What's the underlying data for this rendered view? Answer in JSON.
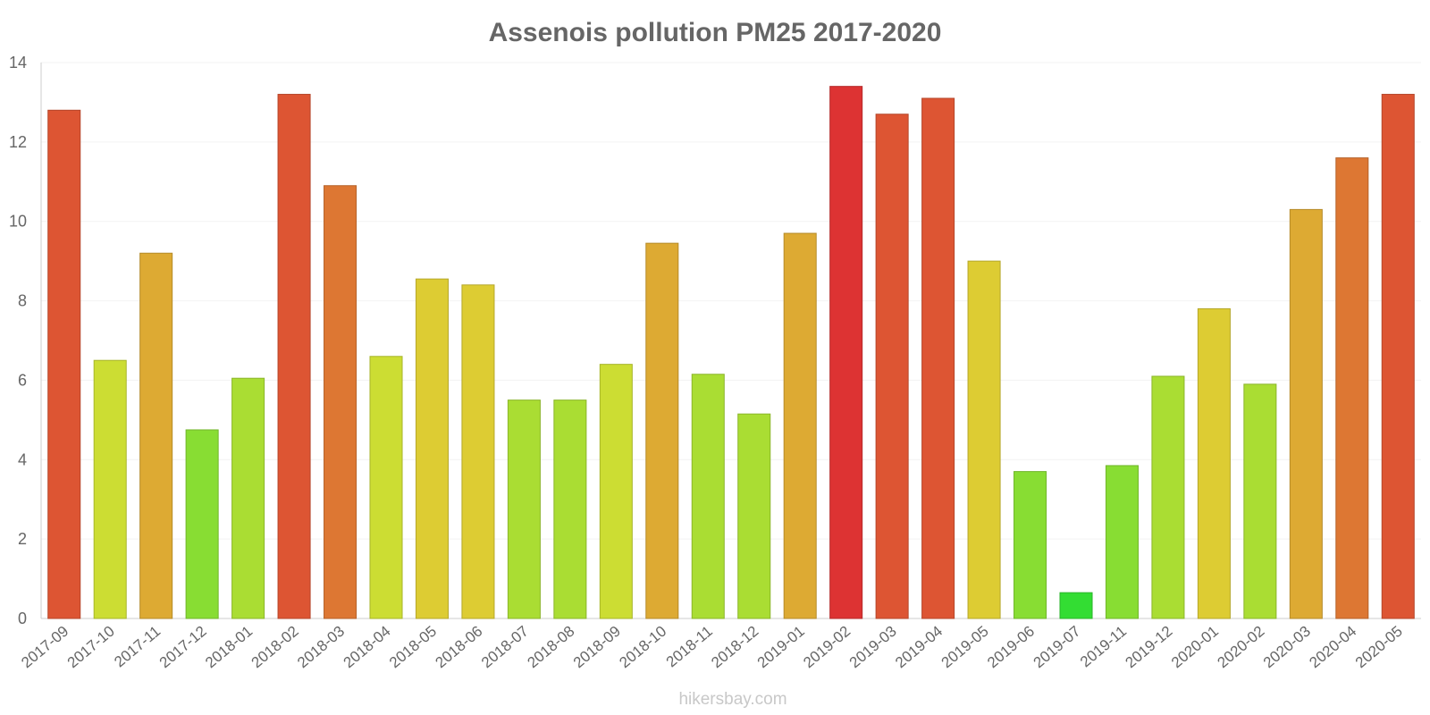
{
  "chart_data": {
    "type": "bar",
    "title": "Assenois pollution PM25 2017-2020",
    "xlabel": "",
    "ylabel": "",
    "ylim": [
      0,
      14
    ],
    "yticks": [
      0,
      2,
      4,
      6,
      8,
      10,
      12,
      14
    ],
    "grid": true,
    "legend": "none",
    "categories": [
      "2017-09",
      "2017-10",
      "2017-11",
      "2017-12",
      "2018-01",
      "2018-02",
      "2018-03",
      "2018-04",
      "2018-05",
      "2018-06",
      "2018-07",
      "2018-08",
      "2018-09",
      "2018-10",
      "2018-11",
      "2018-12",
      "2019-01",
      "2019-02",
      "2019-03",
      "2019-04",
      "2019-05",
      "2019-06",
      "2019-07",
      "2019-11",
      "2019-12",
      "2020-01",
      "2020-02",
      "2020-03",
      "2020-04",
      "2020-05"
    ],
    "values": [
      12.8,
      6.5,
      9.2,
      4.75,
      6.05,
      13.2,
      10.9,
      6.6,
      8.55,
      8.4,
      5.5,
      5.5,
      6.4,
      9.45,
      6.15,
      5.15,
      9.7,
      13.4,
      12.7,
      13.1,
      9.0,
      3.7,
      0.65,
      3.85,
      6.1,
      7.8,
      5.9,
      10.3,
      11.6,
      13.2
    ],
    "colors": {
      "very_low": "#33dd33",
      "low": "#88dd33",
      "low_mid": "#aadd33",
      "mid": "#ccdd33",
      "mid_high": "#ddcc33",
      "high": "#ddaa33",
      "higher": "#dd7733",
      "very_high": "#dd5533",
      "extreme": "#dd3333"
    }
  },
  "footer": {
    "credit": "hikersbay.com"
  }
}
